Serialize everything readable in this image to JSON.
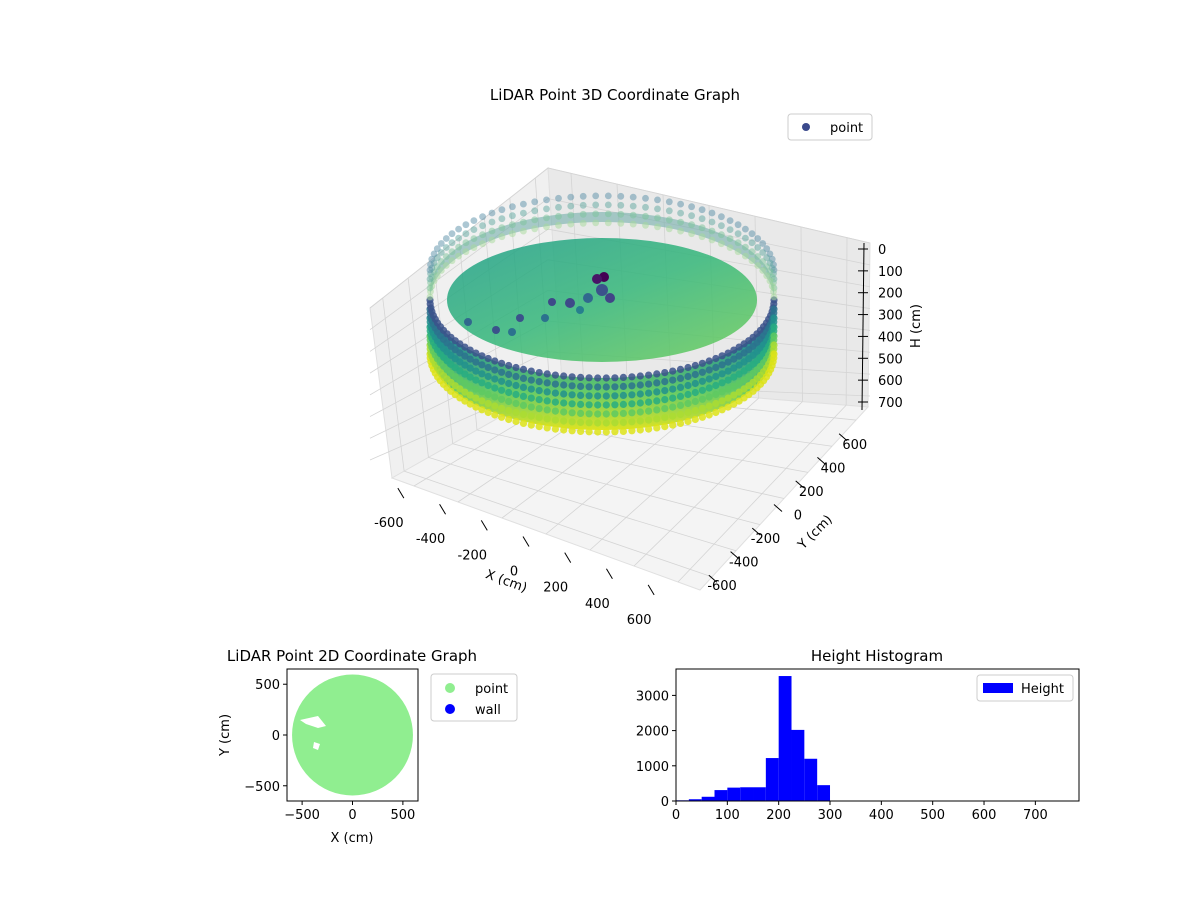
{
  "chart_data": [
    {
      "type": "scatter",
      "id": "lidar-3d",
      "title": "LiDAR Point 3D Coordinate Graph",
      "xlabel": "X (cm)",
      "ylabel": "Y (cm)",
      "zlabel": "H (cm)",
      "xlim": [
        -700,
        700
      ],
      "ylim": [
        -700,
        700
      ],
      "zlim": [
        0,
        750
      ],
      "z_inverted": true,
      "x_ticks": [
        -600,
        -400,
        -200,
        0,
        200,
        400,
        600
      ],
      "y_ticks": [
        -600,
        -400,
        -200,
        0,
        200,
        400,
        600
      ],
      "z_ticks": [
        0,
        100,
        200,
        300,
        400,
        500,
        600,
        700
      ],
      "colormap": "viridis",
      "legend": {
        "entries": [
          "point"
        ],
        "placement": "top-right",
        "marker_color": "#3b4a8c"
      },
      "series": [
        {
          "name": "point",
          "shape": "cylindrical wall",
          "radius": 600,
          "h_range": [
            200,
            350
          ]
        }
      ]
    },
    {
      "type": "scatter",
      "id": "lidar-2d",
      "title": "LiDAR Point 2D Coordinate Graph",
      "xlabel": "X (cm)",
      "ylabel": "Y (cm)",
      "xlim": [
        -650,
        650
      ],
      "ylim": [
        -650,
        650
      ],
      "x_ticks": [
        -500,
        0,
        500
      ],
      "y_ticks": [
        -500,
        0,
        500
      ],
      "legend": {
        "placement": "outside-right"
      },
      "series": [
        {
          "name": "point",
          "color": "#90ee90",
          "shape": "filled disc",
          "radius": 600
        },
        {
          "name": "wall",
          "color": "#0000ff"
        }
      ]
    },
    {
      "type": "bar",
      "id": "height-histogram",
      "title": "Height Histogram",
      "xlim": [
        0,
        785
      ],
      "ylim": [
        0,
        3750
      ],
      "x_ticks": [
        0,
        100,
        200,
        300,
        400,
        500,
        600,
        700
      ],
      "y_ticks": [
        0,
        1000,
        2000,
        3000
      ],
      "legend": {
        "placement": "top-right"
      },
      "series": [
        {
          "name": "Height",
          "color": "#0000ff",
          "bin_edges": [
            0,
            25,
            50,
            75,
            100,
            125,
            150,
            175,
            200,
            225,
            250,
            275,
            300,
            325,
            350,
            375,
            400,
            425,
            450,
            475,
            500,
            525,
            550,
            575,
            600,
            625,
            650,
            675,
            700,
            725,
            750
          ],
          "counts": [
            20,
            50,
            120,
            310,
            380,
            390,
            390,
            1220,
            3550,
            2020,
            1200,
            450,
            0,
            0,
            0,
            0,
            0,
            0,
            0,
            0,
            0,
            0,
            0,
            0,
            0,
            0,
            0,
            0,
            0,
            0
          ]
        }
      ]
    }
  ]
}
